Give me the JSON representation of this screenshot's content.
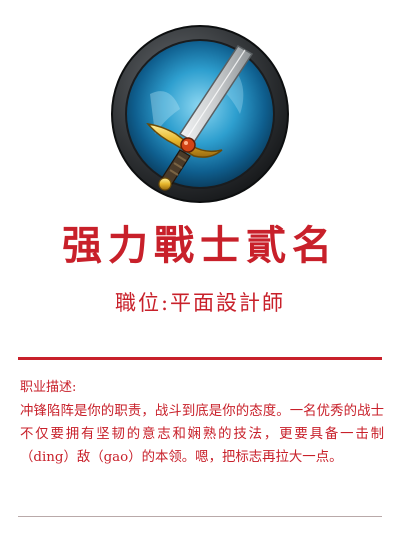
{
  "header": {
    "badge_icon": "sword-icon",
    "title": "强力戰士貳名",
    "subtitle": "職位:平面設計師"
  },
  "description": {
    "label": "职业描述:",
    "body": "冲锋陷阵是你的职责，战斗到底是你的态度。一名优秀的战士不仅要拥有坚韧的意志和娴熟的技法，更要具备一击制（ding）敌（gao）的本领。嗯，把标志再拉大一点。"
  },
  "colors": {
    "accent": "#c8202a",
    "divider": "#b9a9a9",
    "badge_blue": "#1f8fc0",
    "badge_frame": "#3a3d40"
  }
}
